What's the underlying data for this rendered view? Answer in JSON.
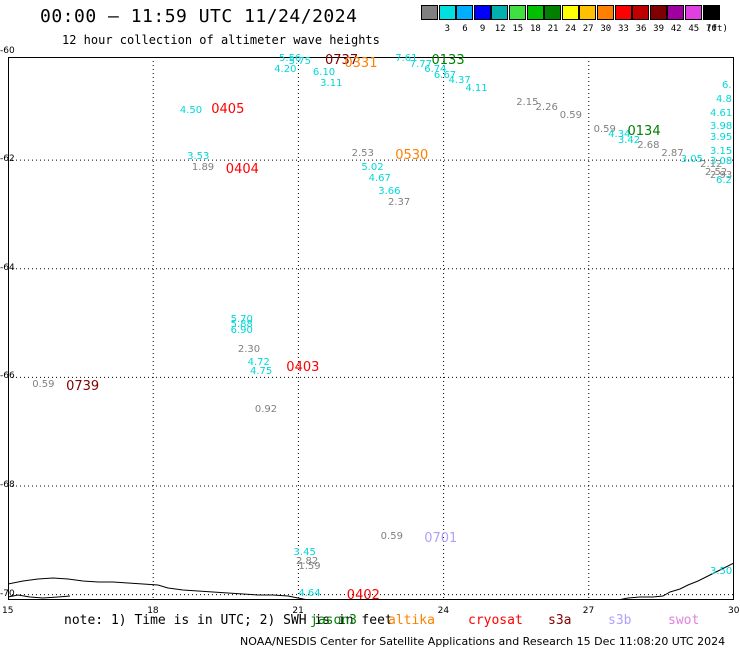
{
  "header": {
    "title": "00:00 — 11:59 UTC 11/24/2024",
    "subtitle": "12 hour collection of altimeter wave heights"
  },
  "scale": {
    "unit": "(ft)",
    "swatches": [
      {
        "label": "",
        "color": "#808080"
      },
      {
        "label": "3",
        "color": "#00e0e0"
      },
      {
        "label": "6",
        "color": "#00b0ff"
      },
      {
        "label": "9",
        "color": "#0000ff"
      },
      {
        "label": "12",
        "color": "#00b0b0"
      },
      {
        "label": "15",
        "color": "#40e040"
      },
      {
        "label": "18",
        "color": "#00c000"
      },
      {
        "label": "21",
        "color": "#008000"
      },
      {
        "label": "24",
        "color": "#ffff00"
      },
      {
        "label": "27",
        "color": "#ffc000"
      },
      {
        "label": "30",
        "color": "#ff8000"
      },
      {
        "label": "33",
        "color": "#ff0000"
      },
      {
        "label": "36",
        "color": "#c00000"
      },
      {
        "label": "39",
        "color": "#800000"
      },
      {
        "label": "42",
        "color": "#a000a0"
      },
      {
        "label": "45",
        "color": "#e040e0"
      },
      {
        "label": "70",
        "color": "#000000"
      }
    ]
  },
  "axes": {
    "x_ticks": [
      "15",
      "18",
      "21",
      "24",
      "27",
      "30"
    ],
    "y_ticks": [
      "-60",
      "-62",
      "-64",
      "-66",
      "-68",
      "-70"
    ],
    "x_range": [
      15,
      30
    ],
    "y_range": [
      -60.1,
      -70.1
    ]
  },
  "swh": [
    {
      "text": "5.56",
      "lon": 20.6,
      "lat": -60.05,
      "color": "#00d8d8"
    },
    {
      "text": "5.75",
      "lon": 20.8,
      "lat": -60.1,
      "color": "#00d8d8"
    },
    {
      "text": "4.20",
      "lon": 20.5,
      "lat": -60.25,
      "color": "#00d8d8"
    },
    {
      "text": "6.10",
      "lon": 21.3,
      "lat": -60.3,
      "color": "#00d8d8"
    },
    {
      "text": "3.11",
      "lon": 21.45,
      "lat": -60.5,
      "color": "#00d8d8"
    },
    {
      "text": "7.61",
      "lon": 23.0,
      "lat": -60.05,
      "color": "#00d8d8"
    },
    {
      "text": "7.77",
      "lon": 23.3,
      "lat": -60.15,
      "color": "#00d8d8"
    },
    {
      "text": "6.74",
      "lon": 23.6,
      "lat": -60.25,
      "color": "#00d8d8"
    },
    {
      "text": "6.67",
      "lon": 23.8,
      "lat": -60.35,
      "color": "#00d8d8"
    },
    {
      "text": "4.37",
      "lon": 24.1,
      "lat": -60.45,
      "color": "#00d8d8"
    },
    {
      "text": "4.11",
      "lon": 24.45,
      "lat": -60.6,
      "color": "#00d8d8"
    },
    {
      "text": "2.15",
      "lon": 25.5,
      "lat": -60.85,
      "color": "#808080"
    },
    {
      "text": "2.26",
      "lon": 25.9,
      "lat": -60.95,
      "color": "#808080"
    },
    {
      "text": "0.59",
      "lon": 26.4,
      "lat": -61.1,
      "color": "#808080"
    },
    {
      "text": "0.59",
      "lon": 27.1,
      "lat": -61.35,
      "color": "#808080"
    },
    {
      "text": "4.34",
      "lon": 27.4,
      "lat": -61.45,
      "color": "#00d8d8"
    },
    {
      "text": "3.42",
      "lon": 27.6,
      "lat": -61.55,
      "color": "#00d8d8"
    },
    {
      "text": "2.68",
      "lon": 28.0,
      "lat": -61.65,
      "color": "#808080"
    },
    {
      "text": "2.87",
      "lon": 28.5,
      "lat": -61.8,
      "color": "#808080"
    },
    {
      "text": "3.05",
      "lon": 28.9,
      "lat": -61.9,
      "color": "#00d8d8"
    },
    {
      "text": "2.12",
      "lon": 29.3,
      "lat": -62.0,
      "color": "#808080"
    },
    {
      "text": "2.52",
      "lon": 29.4,
      "lat": -62.15,
      "color": "#808080"
    },
    {
      "text": "3.08",
      "lon": 29.6,
      "lat": -61.95,
      "color": "#00d8d8"
    },
    {
      "text": "3.15",
      "lon": 29.8,
      "lat": -61.75,
      "color": "#00d8d8"
    },
    {
      "text": "3.95",
      "lon": 30.0,
      "lat": -61.5,
      "color": "#00d8d8"
    },
    {
      "text": "3.98",
      "lon": 30.2,
      "lat": -61.3,
      "color": "#00d8d8"
    },
    {
      "text": "4.61",
      "lon": 30.4,
      "lat": -61.05,
      "color": "#00d8d8"
    },
    {
      "text": "4.8",
      "lon": 30.55,
      "lat": -60.8,
      "color": "#00d8d8"
    },
    {
      "text": "6.",
      "lon": 30.7,
      "lat": -60.55,
      "color": "#00d8d8"
    },
    {
      "text": "2.93",
      "lon": 29.95,
      "lat": -62.2,
      "color": "#808080"
    },
    {
      "text": "6.2",
      "lon": 30.5,
      "lat": -62.3,
      "color": "#00d8d8"
    },
    {
      "text": "4.50",
      "lon": 18.55,
      "lat": -61.0,
      "color": "#00d8d8"
    },
    {
      "text": "3.53",
      "lon": 18.7,
      "lat": -61.85,
      "color": "#00d8d8"
    },
    {
      "text": "1.89",
      "lon": 18.8,
      "lat": -62.05,
      "color": "#808080"
    },
    {
      "text": "2.53",
      "lon": 22.1,
      "lat": -61.8,
      "color": "#808080"
    },
    {
      "text": "5.02",
      "lon": 22.3,
      "lat": -62.05,
      "color": "#00d8d8"
    },
    {
      "text": "4.67",
      "lon": 22.45,
      "lat": -62.25,
      "color": "#00d8d8"
    },
    {
      "text": "3.66",
      "lon": 22.65,
      "lat": -62.5,
      "color": "#00d8d8"
    },
    {
      "text": "2.37",
      "lon": 22.85,
      "lat": -62.7,
      "color": "#808080"
    },
    {
      "text": "5.70",
      "lon": 19.6,
      "lat": -64.85,
      "color": "#00d8d8"
    },
    {
      "text": "5.88",
      "lon": 19.6,
      "lat": -64.95,
      "color": "#00d8d8"
    },
    {
      "text": "6.90",
      "lon": 19.6,
      "lat": -65.05,
      "color": "#00d8d8"
    },
    {
      "text": "2.30",
      "lon": 19.75,
      "lat": -65.4,
      "color": "#808080"
    },
    {
      "text": "4.72",
      "lon": 19.95,
      "lat": -65.65,
      "color": "#00d8d8"
    },
    {
      "text": "4.75",
      "lon": 20.0,
      "lat": -65.8,
      "color": "#00d8d8"
    },
    {
      "text": "0.92",
      "lon": 20.1,
      "lat": -66.5,
      "color": "#808080"
    },
    {
      "text": "0.59",
      "lon": 15.5,
      "lat": -66.05,
      "color": "#808080"
    },
    {
      "text": "0.59",
      "lon": 22.7,
      "lat": -68.85,
      "color": "#808080"
    },
    {
      "text": "3.45",
      "lon": 20.9,
      "lat": -69.15,
      "color": "#00d8d8"
    },
    {
      "text": "2.82",
      "lon": 20.95,
      "lat": -69.3,
      "color": "#808080"
    },
    {
      "text": "1.59",
      "lon": 21.0,
      "lat": -69.4,
      "color": "#808080"
    },
    {
      "text": "4.64",
      "lon": 21.0,
      "lat": -69.9,
      "color": "#00d8d8"
    },
    {
      "text": "3.50",
      "lon": 30.5,
      "lat": -69.5,
      "color": "#00d8d8"
    }
  ],
  "passes": [
    {
      "text": "0737",
      "lon": 21.55,
      "lat": -60.05,
      "color": "#800000"
    },
    {
      "text": "0331",
      "lon": 21.95,
      "lat": -60.1,
      "color": "#ff8000"
    },
    {
      "text": "0133",
      "lon": 23.75,
      "lat": -60.05,
      "color": "#008000"
    },
    {
      "text": "0405",
      "lon": 19.2,
      "lat": -60.95,
      "color": "#ff0000"
    },
    {
      "text": "0404",
      "lon": 19.5,
      "lat": -62.05,
      "color": "#ff0000"
    },
    {
      "text": "0530",
      "lon": 23.0,
      "lat": -61.8,
      "color": "#ff8000"
    },
    {
      "text": "0134",
      "lon": 27.8,
      "lat": -61.35,
      "color": "#008000"
    },
    {
      "text": "0403",
      "lon": 20.75,
      "lat": -65.7,
      "color": "#ff0000"
    },
    {
      "text": "0739",
      "lon": 16.2,
      "lat": -66.05,
      "color": "#800000"
    },
    {
      "text": "0701",
      "lon": 23.6,
      "lat": -68.85,
      "color": "#b0a0ff"
    },
    {
      "text": "0402",
      "lon": 22.0,
      "lat": -69.9,
      "color": "#ff0000"
    }
  ],
  "footer": {
    "note": "note: 1) Time is in UTC; 2) SWH is in feet",
    "credit": "NOAA/NESDIS Center for Satellite Applications and Research   15 Dec 11:08:20 UTC 2024",
    "missions": [
      {
        "label": "jason3",
        "color": "#008000"
      },
      {
        "label": "altika",
        "color": "#ff8000"
      },
      {
        "label": "cryosat",
        "color": "#ff0000"
      },
      {
        "label": "s3a",
        "color": "#800000"
      },
      {
        "label": "s3b",
        "color": "#b0a0ff"
      },
      {
        "label": "swot",
        "color": "#e080e0"
      }
    ]
  }
}
